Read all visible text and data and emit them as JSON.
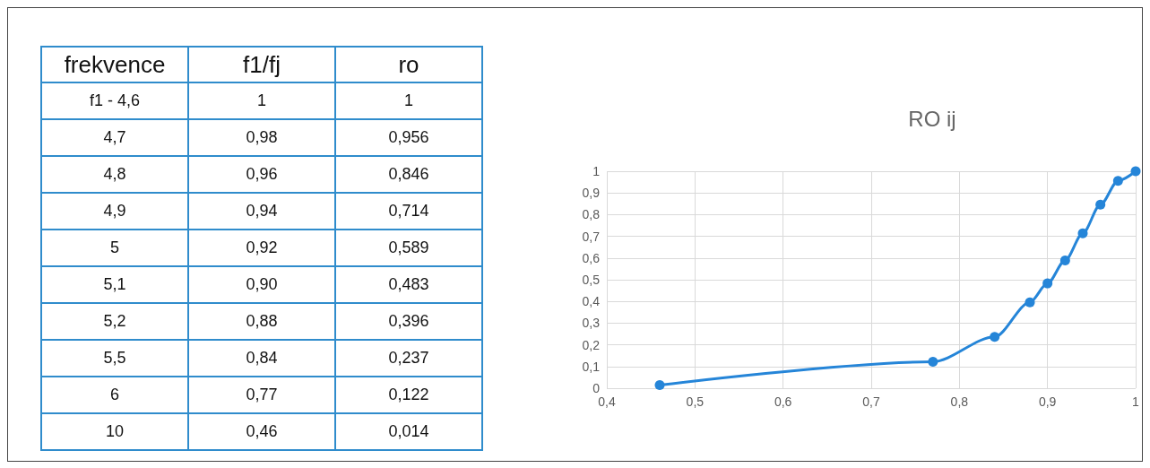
{
  "chart_data": [
    {
      "type": "other",
      "categories": [
        "frekvence",
        "f1/fj",
        "ro"
      ],
      "annotations": [
        "f1 - 4,6",
        "1",
        "1",
        "4,7",
        "0,98",
        "0,956",
        "4,8",
        "0,96",
        "0,846",
        "4,9",
        "0,94",
        "0,714",
        "5",
        "0,92",
        "0,589",
        "5,1",
        "0,90",
        "0,483",
        "5,2",
        "0,88",
        "0,396",
        "5,5",
        "0,84",
        "0,237",
        "6",
        "0,77",
        "0,122",
        "10",
        "0,46",
        "0,014"
      ]
    },
    {
      "type": "line",
      "title": "RO ij",
      "x": [
        0.46,
        0.77,
        0.84,
        0.88,
        0.9,
        0.92,
        0.94,
        0.96,
        0.98,
        1
      ],
      "series": [
        {
          "color": "#2585d8",
          "values": [
            0.014,
            0.122,
            0.237,
            0.396,
            0.483,
            0.589,
            0.714,
            0.846,
            0.956,
            1
          ]
        }
      ],
      "xlim": [
        0.4,
        1
      ],
      "xticks": [
        {
          "value": 0.4,
          "label": "0,4"
        },
        {
          "value": 0.5,
          "label": "0,5"
        },
        {
          "value": 0.6,
          "label": "0,6"
        },
        {
          "value": 0.7,
          "label": "0,7"
        },
        {
          "value": 0.8,
          "label": "0,8"
        },
        {
          "value": 0.9,
          "label": "0,9"
        },
        1
      ],
      "ylim": [
        0,
        1
      ],
      "yticks": [
        0,
        {
          "value": 0.1,
          "label": "0,1"
        },
        {
          "value": 0.2,
          "label": "0,2"
        },
        {
          "value": 0.3,
          "label": "0,3"
        },
        {
          "value": 0.4,
          "label": "0,4"
        },
        {
          "value": 0.5,
          "label": "0,5"
        },
        {
          "value": 0.6,
          "label": "0,6"
        },
        {
          "value": 0.7,
          "label": "0,7"
        },
        {
          "value": 0.8,
          "label": "0,8"
        },
        {
          "value": 0.9,
          "label": "0,9"
        },
        1
      ],
      "grid": true,
      "marker": "circle",
      "line_style": "solid"
    }
  ]
}
